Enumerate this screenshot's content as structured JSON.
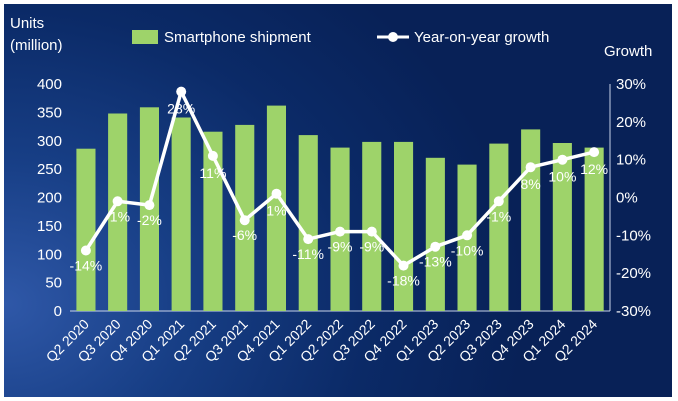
{
  "chart_data": {
    "type": "bar+line",
    "categories": [
      "Q2 2020",
      "Q3 2020",
      "Q4 2020",
      "Q1 2021",
      "Q2 2021",
      "Q3 2021",
      "Q4 2021",
      "Q1 2022",
      "Q2 2022",
      "Q3 2022",
      "Q4 2022",
      "Q1 2023",
      "Q2 2023",
      "Q3 2023",
      "Q4 2023",
      "Q1 2024",
      "Q2 2024"
    ],
    "series": [
      {
        "name": "Smartphone shipment",
        "type": "bar",
        "axis": "left",
        "values": [
          286,
          348,
          359,
          341,
          316,
          328,
          362,
          310,
          288,
          298,
          298,
          270,
          258,
          295,
          320,
          296,
          288
        ]
      },
      {
        "name": "Year-on-year growth",
        "type": "line",
        "axis": "right",
        "values": [
          -14,
          -1,
          -2,
          28,
          11,
          -6,
          1,
          -11,
          -9,
          -9,
          -18,
          -13,
          -10,
          -1,
          8,
          10,
          12
        ],
        "labels": [
          "-14%",
          "-1%",
          "-2%",
          "28%",
          "11%",
          "-6%",
          "1%",
          "-11%",
          "-9%",
          "-9%",
          "-18%",
          "-13%",
          "-10%",
          "-1%",
          "8%",
          "10%",
          "12%"
        ]
      }
    ],
    "y_left": {
      "label_line1": "Units",
      "label_line2": "(million)",
      "ylim": [
        0,
        400
      ],
      "ticks": [
        "0",
        "50",
        "100",
        "150",
        "200",
        "250",
        "300",
        "350",
        "400"
      ]
    },
    "y_right": {
      "label": "Growth",
      "ylim": [
        -30,
        30
      ],
      "ticks": [
        "-30%",
        "-20%",
        "-10%",
        "0%",
        "10%",
        "20%",
        "30%"
      ]
    },
    "legend": {
      "bar": "Smartphone shipment",
      "line": "Year-on-year growth",
      "placement": "top"
    },
    "colors": {
      "bar": "#9ed36a",
      "line": "#ffffff",
      "background": "#0b2a67"
    },
    "grid": false
  }
}
